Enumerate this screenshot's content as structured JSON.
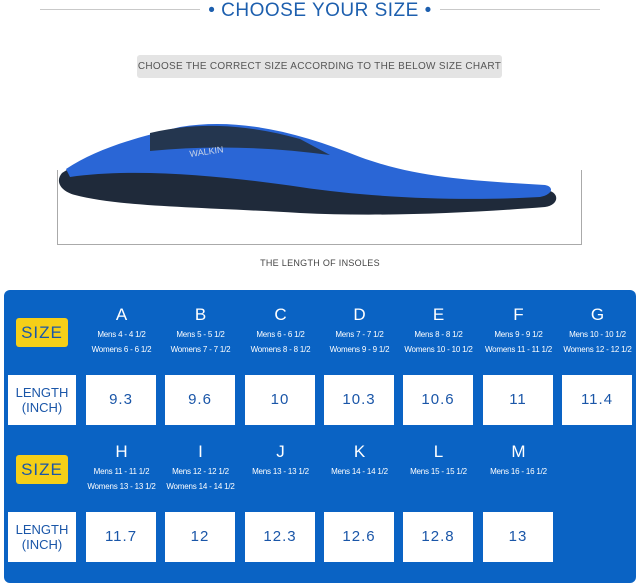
{
  "header": {
    "title": "CHOOSE YOUR SIZE",
    "subtitle": "CHOOSE THE CORRECT SIZE ACCORDING TO THE BELOW SIZE CHART",
    "caption": "THE LENGTH OF INSOLES",
    "insole_brand": "WALKIN"
  },
  "colors": {
    "panel": "#0a63c4",
    "badge": "#f5cf18",
    "text_blue": "#1a56a8"
  },
  "chart": {
    "size_label": "SIZE",
    "length_label_1": "LENGTH",
    "length_label_2": "(INCH)",
    "rows": [
      {
        "sizes": [
          {
            "letter": "A",
            "mens": "Mens 4 - 4 1/2",
            "womens": "Womens 6 - 6 1/2",
            "length": "9.3"
          },
          {
            "letter": "B",
            "mens": "Mens 5 - 5 1/2",
            "womens": "Womens 7 - 7 1/2",
            "length": "9.6"
          },
          {
            "letter": "C",
            "mens": "Mens 6 - 6 1/2",
            "womens": "Womens 8 - 8 1/2",
            "length": "10"
          },
          {
            "letter": "D",
            "mens": "Mens 7 - 7 1/2",
            "womens": "Womens 9 - 9 1/2",
            "length": "10.3"
          },
          {
            "letter": "E",
            "mens": "Mens 8 - 8 1/2",
            "womens": "Womens 10 - 10 1/2",
            "length": "10.6"
          },
          {
            "letter": "F",
            "mens": "Mens 9 - 9 1/2",
            "womens": "Womens 11 - 11 1/2",
            "length": "11"
          },
          {
            "letter": "G",
            "mens": "Mens 10 - 10 1/2",
            "womens": "Womens 12 - 12 1/2",
            "length": "11.4"
          }
        ]
      },
      {
        "sizes": [
          {
            "letter": "H",
            "mens": "Mens 11 - 11 1/2",
            "womens": "Womens 13 - 13 1/2",
            "length": "11.7"
          },
          {
            "letter": "I",
            "mens": "Mens 12 - 12 1/2",
            "womens": "Womens 14 - 14 1/2",
            "length": "12"
          },
          {
            "letter": "J",
            "mens": "Mens 13 - 13 1/2",
            "womens": "",
            "length": "12.3"
          },
          {
            "letter": "K",
            "mens": "Mens 14 - 14 1/2",
            "womens": "",
            "length": "12.6"
          },
          {
            "letter": "L",
            "mens": "Mens 15 - 15 1/2",
            "womens": "",
            "length": "12.8"
          },
          {
            "letter": "M",
            "mens": "Mens 16 - 16 1/2",
            "womens": "",
            "length": "13"
          }
        ]
      }
    ]
  }
}
